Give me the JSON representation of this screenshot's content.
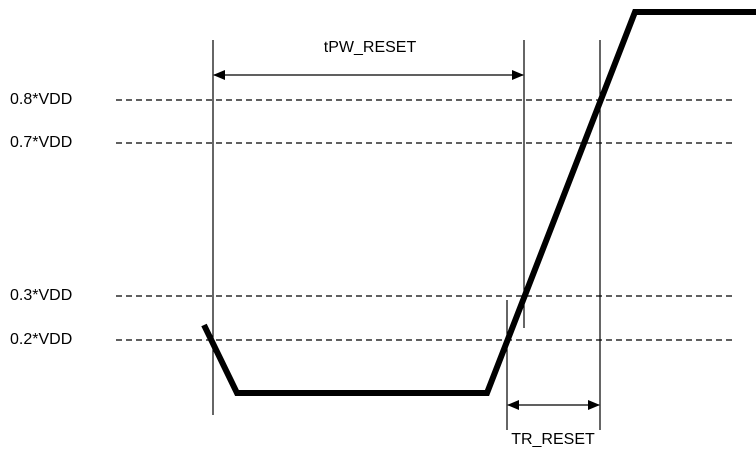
{
  "levels": [
    "0.8*VDD",
    "0.7*VDD",
    "0.3*VDD",
    "0.2*VDD"
  ],
  "annotations": {
    "pulse_width": "tPW_RESET",
    "rise_time": "TR_RESET"
  }
}
